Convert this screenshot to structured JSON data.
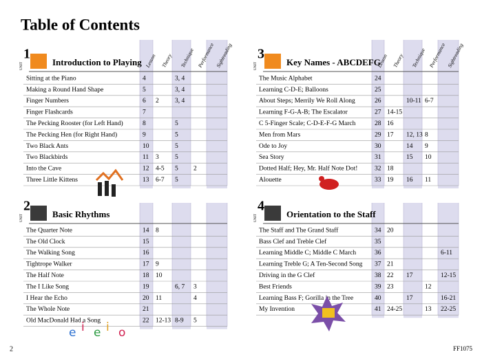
{
  "title": "Table of Contents",
  "columns": [
    "Lesson",
    "Theory",
    "Technique",
    "Performance",
    "Sightreading"
  ],
  "units": [
    {
      "label": "UNIT",
      "number": "1",
      "title": "Introduction to Playing",
      "rows": [
        {
          "title": "Sitting at the Piano",
          "lesson": 4,
          "technique": "3, 4"
        },
        {
          "title": "Making a Round Hand Shape",
          "lesson": 5,
          "technique": "3, 4"
        },
        {
          "title": "Finger Numbers",
          "lesson": 6,
          "theory": 2,
          "technique": "3, 4"
        },
        {
          "title": "Finger Flashcards",
          "lesson": 7
        },
        {
          "title": "The Pecking Rooster (for Left Hand)",
          "lesson": 8,
          "technique": 5
        },
        {
          "title": "The Pecking Hen (for Right Hand)",
          "lesson": 9,
          "technique": 5
        },
        {
          "title": "Two Black Ants",
          "lesson": 10,
          "technique": 5
        },
        {
          "title": "Two Blackbirds",
          "lesson": 11,
          "theory": 3,
          "technique": 5
        },
        {
          "title": "Into the Cave",
          "lesson": 12,
          "theory": "4-5",
          "technique": 5,
          "performance": 2
        },
        {
          "title": "Three Little Kittens",
          "lesson": 13,
          "theory": "6-7",
          "technique": 5
        }
      ]
    },
    {
      "label": "UNIT",
      "number": "2",
      "title": "Basic Rhythms",
      "rows": [
        {
          "title": "The Quarter Note",
          "lesson": 14,
          "theory": 8
        },
        {
          "title": "The Old Clock",
          "lesson": 15
        },
        {
          "title": "The Walking Song",
          "lesson": 16
        },
        {
          "title": "Tightrope Walker",
          "lesson": 17,
          "theory": 9
        },
        {
          "title": "The Half Note",
          "lesson": 18,
          "theory": 10
        },
        {
          "title": "The I Like Song",
          "lesson": 19,
          "technique": "6, 7",
          "performance": 3
        },
        {
          "title": "I Hear the Echo",
          "lesson": 20,
          "theory": 11,
          "performance": 4
        },
        {
          "title": "The Whole Note",
          "lesson": 21
        },
        {
          "title": "Old MacDonald Had a Song",
          "lesson": 22,
          "theory": "12-13",
          "technique": "8-9",
          "performance": 5
        }
      ]
    },
    {
      "label": "UNIT",
      "number": "3",
      "title": "Key Names - ABCDEFG",
      "rows": [
        {
          "title": "The Music Alphabet",
          "lesson": 24
        },
        {
          "title": "Learning C-D-E; Balloons",
          "lesson": 25
        },
        {
          "title": "About Steps; Merrily We Roll Along",
          "lesson": 26,
          "technique": "10-11",
          "performance": "6-7"
        },
        {
          "title": "Learning F-G-A-B; The Escalator",
          "lesson": 27,
          "theory": "14-15"
        },
        {
          "title": "C 5-Finger Scale; C-D-E-F-G March",
          "lesson": 28,
          "theory": 16
        },
        {
          "title": "Men from Mars",
          "lesson": 29,
          "theory": 17,
          "technique": "12, 13",
          "performance": 8
        },
        {
          "title": "Ode to Joy",
          "lesson": 30,
          "technique": 14,
          "performance": 9
        },
        {
          "title": "Sea Story",
          "lesson": 31,
          "technique": 15,
          "performance": 10
        },
        {
          "title": "Dotted Half; Hey, Mr. Half Note Dot!",
          "lesson": 32,
          "theory": 18
        },
        {
          "title": "Alouette",
          "lesson": 33,
          "theory": 19,
          "technique": 16,
          "performance": 11
        }
      ]
    },
    {
      "label": "UNIT",
      "number": "4",
      "title": "Orientation to the Staff",
      "rows": [
        {
          "title": "The Staff and The Grand Staff",
          "lesson": 34,
          "theory": 20
        },
        {
          "title": "Bass Clef and Treble Clef",
          "lesson": 35
        },
        {
          "title": "Learning Middle C; Middle C March",
          "lesson": 36,
          "sightreading": "6-11"
        },
        {
          "title": "Learning Treble G; A Ten-Second Song",
          "lesson": 37,
          "theory": 21
        },
        {
          "title": "Driving in the G Clef",
          "lesson": 38,
          "theory": 22,
          "technique": 17,
          "sightreading": "12-15"
        },
        {
          "title": "Best Friends",
          "lesson": 39,
          "theory": 23,
          "performance": 12
        },
        {
          "title": "Learning Bass F; Gorilla in the Tree",
          "lesson": 40,
          "technique": 17,
          "sightreading": "16-21"
        },
        {
          "title": "My Invention",
          "lesson": 41,
          "theory": "24-25",
          "performance": 13,
          "sightreading": "22-25"
        }
      ]
    }
  ],
  "decoration_letters": [
    "e",
    "i",
    "e",
    "i",
    "o"
  ],
  "footer": {
    "page": "2",
    "code": "FF1075"
  }
}
